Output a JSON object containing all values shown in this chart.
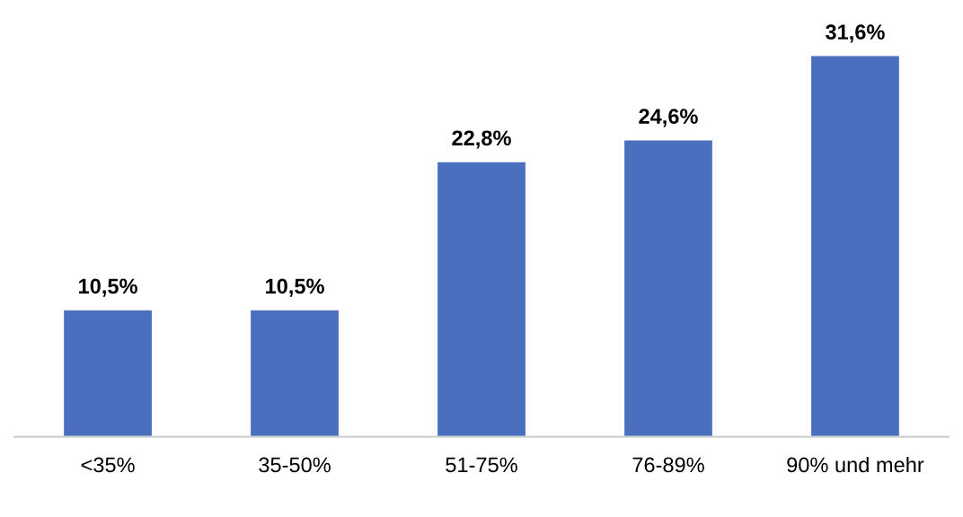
{
  "chart_data": {
    "type": "bar",
    "categories": [
      "<35%",
      "35-50%",
      "51-75%",
      "76-89%",
      "90% und mehr"
    ],
    "values": [
      10.5,
      10.5,
      22.8,
      24.6,
      31.6
    ],
    "value_labels": [
      "10,5%",
      "10,5%",
      "22,8%",
      "24,6%",
      "31,6%"
    ],
    "color": "#4a6fbf",
    "tick_labels": "x",
    "grid": false,
    "legend": false
  }
}
